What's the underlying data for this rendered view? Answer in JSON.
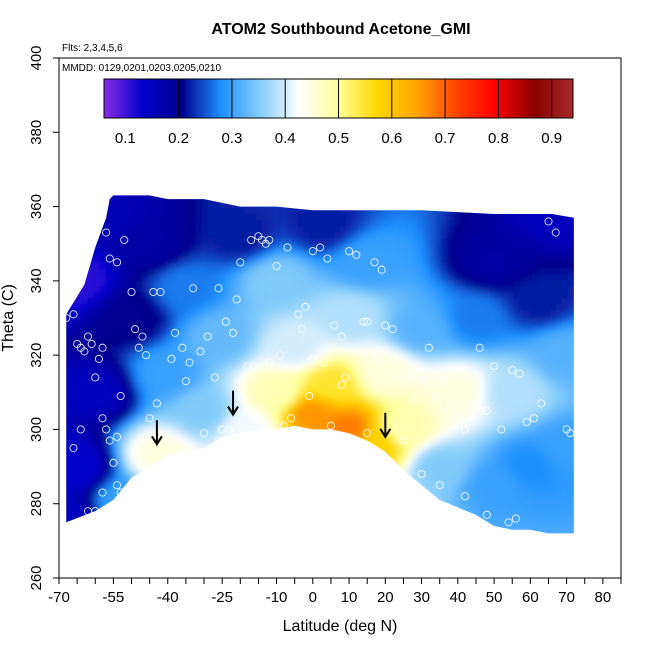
{
  "chart_data": {
    "type": "heatmap",
    "title": "ATOM2 Southbound Acetone_GMI",
    "annotations": [
      "Flts: 2,3,4,5,6",
      "MMDD: 0129,0201,0203,0205,0210"
    ],
    "xlabel": "Latitude (deg N)",
    "ylabel": "Theta (C)",
    "xlim": [
      -70,
      85
    ],
    "ylim": [
      260,
      400
    ],
    "x_ticks": [
      -70,
      -65,
      -60,
      -55,
      -50,
      -45,
      -40,
      -35,
      -30,
      -25,
      -20,
      -15,
      -10,
      -5,
      0,
      5,
      10,
      15,
      20,
      25,
      30,
      35,
      40,
      45,
      50,
      55,
      60,
      65,
      70,
      75,
      80,
      85
    ],
    "x_tick_labels": [
      "-70",
      "-55",
      "-40",
      "-25",
      "-10",
      "0",
      "10",
      "20",
      "30",
      "40",
      "50",
      "60",
      "70",
      "80"
    ],
    "x_tick_label_values": [
      -70,
      -55,
      -40,
      -25,
      -10,
      0,
      10,
      20,
      30,
      40,
      50,
      60,
      70,
      80
    ],
    "y_ticks": [
      260,
      280,
      300,
      320,
      340,
      360,
      380,
      400
    ],
    "y_tick_labels": [
      "260",
      "280",
      "300",
      "320",
      "340",
      "360",
      "380",
      "400"
    ],
    "colorbar": {
      "range": [
        0.06,
        0.94
      ],
      "ticks": [
        0.1,
        0.2,
        0.3,
        0.4,
        0.5,
        0.6,
        0.7,
        0.8,
        0.9
      ],
      "tick_labels": [
        "0.1",
        "0.2",
        "0.3",
        "0.4",
        "0.5",
        "0.6",
        "0.7",
        "0.8",
        "0.9"
      ],
      "divisions": [
        0.2,
        0.3,
        0.4,
        0.5,
        0.6,
        0.7,
        0.8,
        0.9
      ],
      "colors": [
        "#8a2be2",
        "#0000cd",
        "#00008b",
        "#1e90ff",
        "#87cefa",
        "#ffffff",
        "#ffff99",
        "#ffd700",
        "#ffa500",
        "#ff4500",
        "#ff0000",
        "#8b0000",
        "#a52a2a"
      ]
    },
    "surface": [
      {
        "x": -68,
        "y": 276,
        "value": 0.15
      },
      {
        "x": -66,
        "y": 290,
        "value": 0.13
      },
      {
        "x": -65,
        "y": 340,
        "value": 0.11
      },
      {
        "x": -60,
        "y": 310,
        "value": 0.15
      },
      {
        "x": -55,
        "y": 357,
        "value": 0.16
      },
      {
        "x": -52,
        "y": 280,
        "value": 0.3
      },
      {
        "x": -50,
        "y": 330,
        "value": 0.2
      },
      {
        "x": -45,
        "y": 350,
        "value": 0.18
      },
      {
        "x": -42,
        "y": 293,
        "value": 0.45
      },
      {
        "x": -40,
        "y": 315,
        "value": 0.3
      },
      {
        "x": -35,
        "y": 338,
        "value": 0.27
      },
      {
        "x": -30,
        "y": 305,
        "value": 0.35
      },
      {
        "x": -25,
        "y": 325,
        "value": 0.33
      },
      {
        "x": -20,
        "y": 352,
        "value": 0.22
      },
      {
        "x": -18,
        "y": 300,
        "value": 0.42
      },
      {
        "x": -10,
        "y": 310,
        "value": 0.48
      },
      {
        "x": -10,
        "y": 340,
        "value": 0.35
      },
      {
        "x": -5,
        "y": 322,
        "value": 0.4
      },
      {
        "x": 0,
        "y": 304,
        "value": 0.66
      },
      {
        "x": 3,
        "y": 355,
        "value": 0.22
      },
      {
        "x": 5,
        "y": 312,
        "value": 0.55
      },
      {
        "x": 10,
        "y": 300,
        "value": 0.68
      },
      {
        "x": 10,
        "y": 330,
        "value": 0.38
      },
      {
        "x": 15,
        "y": 345,
        "value": 0.3
      },
      {
        "x": 18,
        "y": 296,
        "value": 0.58
      },
      {
        "x": 20,
        "y": 315,
        "value": 0.45
      },
      {
        "x": 25,
        "y": 300,
        "value": 0.48
      },
      {
        "x": 30,
        "y": 327,
        "value": 0.32
      },
      {
        "x": 35,
        "y": 290,
        "value": 0.35
      },
      {
        "x": 40,
        "y": 310,
        "value": 0.45
      },
      {
        "x": 45,
        "y": 330,
        "value": 0.27
      },
      {
        "x": 50,
        "y": 285,
        "value": 0.3
      },
      {
        "x": 50,
        "y": 345,
        "value": 0.18
      },
      {
        "x": 55,
        "y": 310,
        "value": 0.38
      },
      {
        "x": 60,
        "y": 290,
        "value": 0.28
      },
      {
        "x": 62,
        "y": 335,
        "value": 0.22
      },
      {
        "x": 67,
        "y": 358,
        "value": 0.15
      },
      {
        "x": 70,
        "y": 295,
        "value": 0.3
      },
      {
        "x": 70,
        "y": 320,
        "value": 0.32
      }
    ],
    "top_boundary": [
      [
        -68,
        331
      ],
      [
        -63,
        339
      ],
      [
        -60,
        349
      ],
      [
        -57,
        357
      ],
      [
        -56,
        362
      ],
      [
        -55,
        363
      ],
      [
        -52,
        363
      ],
      [
        -45,
        363
      ],
      [
        -40,
        362
      ],
      [
        -30,
        362
      ],
      [
        -20,
        360
      ],
      [
        -10,
        360
      ],
      [
        0,
        359
      ],
      [
        10,
        359
      ],
      [
        30,
        359
      ],
      [
        50,
        358
      ],
      [
        60,
        358
      ],
      [
        66,
        358
      ],
      [
        72,
        357
      ]
    ],
    "bottom_boundary": [
      [
        -68,
        275
      ],
      [
        -60,
        278
      ],
      [
        -55,
        281
      ],
      [
        -50,
        287
      ],
      [
        -45,
        290
      ],
      [
        -40,
        293
      ],
      [
        -30,
        295
      ],
      [
        -25,
        298
      ],
      [
        -20,
        299
      ],
      [
        -15,
        300
      ],
      [
        -10,
        300
      ],
      [
        -5,
        301
      ],
      [
        0,
        300
      ],
      [
        5,
        300
      ],
      [
        10,
        299
      ],
      [
        15,
        297
      ],
      [
        20,
        294
      ],
      [
        25,
        289
      ],
      [
        30,
        285
      ],
      [
        35,
        281
      ],
      [
        40,
        279
      ],
      [
        45,
        277
      ],
      [
        50,
        274
      ],
      [
        55,
        273
      ],
      [
        60,
        273
      ],
      [
        65,
        272
      ],
      [
        72,
        272
      ]
    ],
    "points": [
      [
        -68,
        330
      ],
      [
        -68,
        334
      ],
      [
        -67,
        337
      ],
      [
        -66,
        331
      ],
      [
        -65,
        323
      ],
      [
        -64,
        322
      ],
      [
        -63,
        321
      ],
      [
        -62,
        325
      ],
      [
        -61,
        323
      ],
      [
        -57,
        353
      ],
      [
        -56,
        346
      ],
      [
        -54,
        345
      ],
      [
        -52,
        351
      ],
      [
        -50,
        337
      ],
      [
        -49,
        327
      ],
      [
        -48,
        322
      ],
      [
        -47,
        325
      ],
      [
        -46,
        320
      ],
      [
        -58,
        322
      ],
      [
        -59,
        319
      ],
      [
        -60,
        314
      ],
      [
        -58,
        303
      ],
      [
        -57,
        300
      ],
      [
        -56,
        297
      ],
      [
        -55,
        291
      ],
      [
        -54,
        285
      ],
      [
        -53,
        283
      ],
      [
        -52,
        281
      ],
      [
        -44,
        337
      ],
      [
        -42,
        337
      ],
      [
        -38,
        326
      ],
      [
        -36,
        322
      ],
      [
        -35,
        313
      ],
      [
        -33,
        338
      ],
      [
        -31,
        321
      ],
      [
        -29,
        325
      ],
      [
        -26,
        338
      ],
      [
        -24,
        329
      ],
      [
        -22,
        326
      ],
      [
        -21,
        335
      ],
      [
        -20,
        345
      ],
      [
        -17,
        351
      ],
      [
        -15,
        352
      ],
      [
        -14,
        351
      ],
      [
        -13,
        350
      ],
      [
        -12,
        351
      ],
      [
        -10,
        344
      ],
      [
        -7,
        349
      ],
      [
        -4,
        331
      ],
      [
        -3,
        327
      ],
      [
        -2,
        333
      ],
      [
        0,
        348
      ],
      [
        2,
        349
      ],
      [
        4,
        346
      ],
      [
        6,
        328
      ],
      [
        8,
        325
      ],
      [
        10,
        348
      ],
      [
        12,
        347
      ],
      [
        14,
        329
      ],
      [
        15,
        329
      ],
      [
        17,
        345
      ],
      [
        19,
        343
      ],
      [
        20,
        328
      ],
      [
        22,
        327
      ],
      [
        24,
        314
      ],
      [
        26,
        315
      ],
      [
        28,
        308
      ],
      [
        30,
        313
      ],
      [
        32,
        322
      ],
      [
        34,
        309
      ],
      [
        36,
        313
      ],
      [
        38,
        307
      ],
      [
        40,
        304
      ],
      [
        42,
        300
      ],
      [
        44,
        306
      ],
      [
        46,
        322
      ],
      [
        48,
        305
      ],
      [
        50,
        317
      ],
      [
        52,
        300
      ],
      [
        55,
        316
      ],
      [
        57,
        315
      ],
      [
        59,
        302
      ],
      [
        61,
        303
      ],
      [
        63,
        307
      ],
      [
        65,
        356
      ],
      [
        67,
        353
      ],
      [
        70,
        300
      ],
      [
        71,
        299
      ],
      [
        -40,
        292
      ],
      [
        -37,
        293
      ],
      [
        -30,
        299
      ],
      [
        -25,
        300
      ],
      [
        -8,
        301
      ],
      [
        5,
        301
      ],
      [
        15,
        299
      ],
      [
        25,
        297
      ],
      [
        30,
        288
      ],
      [
        35,
        285
      ],
      [
        42,
        282
      ],
      [
        48,
        277
      ],
      [
        54,
        275
      ],
      [
        56,
        276
      ],
      [
        -26,
        297
      ],
      [
        -23,
        300
      ],
      [
        -12,
        318
      ],
      [
        -6,
        303
      ],
      [
        -1,
        309
      ],
      [
        8,
        312
      ],
      [
        -53,
        309
      ],
      [
        -54,
        298
      ],
      [
        -64,
        300
      ],
      [
        -66,
        295
      ],
      [
        -62,
        278
      ],
      [
        -60,
        278
      ],
      [
        -58,
        283
      ],
      [
        -45,
        303
      ],
      [
        -43,
        307
      ],
      [
        -39,
        319
      ],
      [
        -34,
        318
      ],
      [
        -27,
        314
      ],
      [
        -18,
        317
      ],
      [
        -9,
        320
      ],
      [
        0,
        319
      ],
      [
        3,
        318
      ],
      [
        9,
        314
      ],
      [
        18,
        319
      ],
      [
        27,
        314
      ]
    ],
    "arrows": [
      [
        -43,
        296
      ],
      [
        -22,
        304
      ],
      [
        20,
        298
      ]
    ]
  }
}
